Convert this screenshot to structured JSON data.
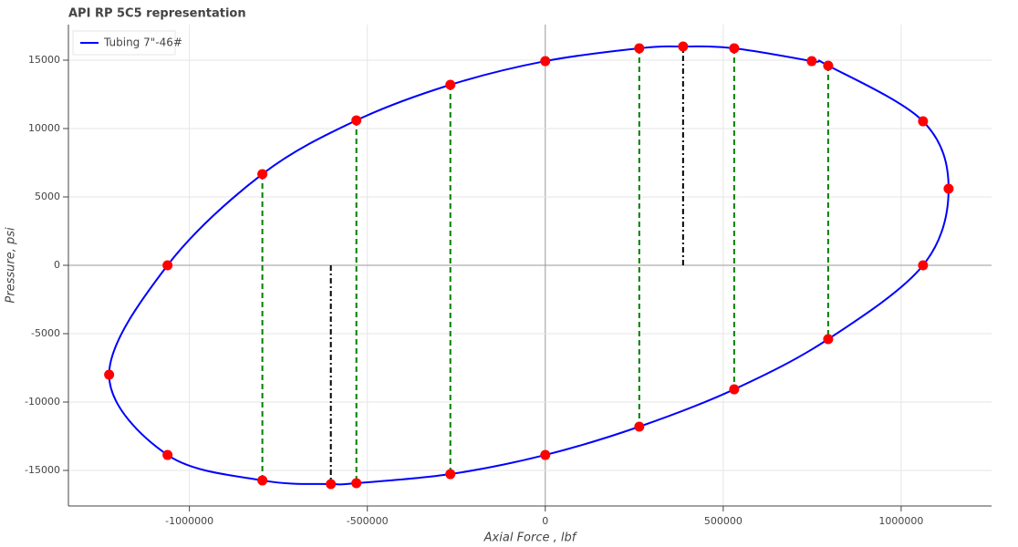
{
  "chart_data": {
    "type": "line",
    "title": "API RP 5C5 representation",
    "x_label": "Axial Force , lbf",
    "y_label": "Pressure, psi",
    "xlim": [
      -1340000,
      1254000
    ],
    "ylim": [
      -17600,
      17600
    ],
    "xticks": [
      -1000000,
      -500000,
      0,
      500000,
      1000000
    ],
    "yticks": [
      -15000,
      -10000,
      -5000,
      0,
      5000,
      10000,
      15000
    ],
    "grid": true,
    "legend": "top-left",
    "marker_color": "#ff0000",
    "series": [
      {
        "name": "Tubing 7\"-46#",
        "color": "#0000ff",
        "x": [
          -1061500,
          -1225600,
          -1061500,
          -795000,
          -602600,
          -530800,
          -266700,
          0,
          264100,
          530800,
          794900,
          1061500,
          1133300,
          1061500,
          794900,
          748700,
          530800,
          387200,
          264100,
          0,
          -266700,
          -530800,
          -795000
        ],
        "y": [
          0,
          -8000,
          -13870,
          -15730,
          -16000,
          -15930,
          -15270,
          -13870,
          -11800,
          -9070,
          -5400,
          0,
          5600,
          10530,
          14600,
          14930,
          15870,
          16000,
          15870,
          14930,
          13200,
          10600,
          6670
        ]
      }
    ],
    "segments": [
      {
        "x": -795000,
        "y": [
          6670,
          -15730
        ],
        "color": "#008000",
        "dash": "dashed"
      },
      {
        "x": -530800,
        "y": [
          10600,
          -15930
        ],
        "color": "#008000",
        "dash": "dashed"
      },
      {
        "x": -266700,
        "y": [
          13200,
          -15270
        ],
        "color": "#008000",
        "dash": "dashed"
      },
      {
        "x": 264100,
        "y": [
          15870,
          -11800
        ],
        "color": "#008000",
        "dash": "dashed"
      },
      {
        "x": 530800,
        "y": [
          15870,
          -9070
        ],
        "color": "#008000",
        "dash": "dashed"
      },
      {
        "x": 794900,
        "y": [
          14600,
          -5400
        ],
        "color": "#008000",
        "dash": "dashed"
      },
      {
        "x": -602600,
        "y": [
          0,
          -16000
        ],
        "color": "#000000",
        "dash": "dashdot"
      },
      {
        "x": 387200,
        "y": [
          0,
          16000
        ],
        "color": "#000000",
        "dash": "dashdot"
      }
    ]
  }
}
